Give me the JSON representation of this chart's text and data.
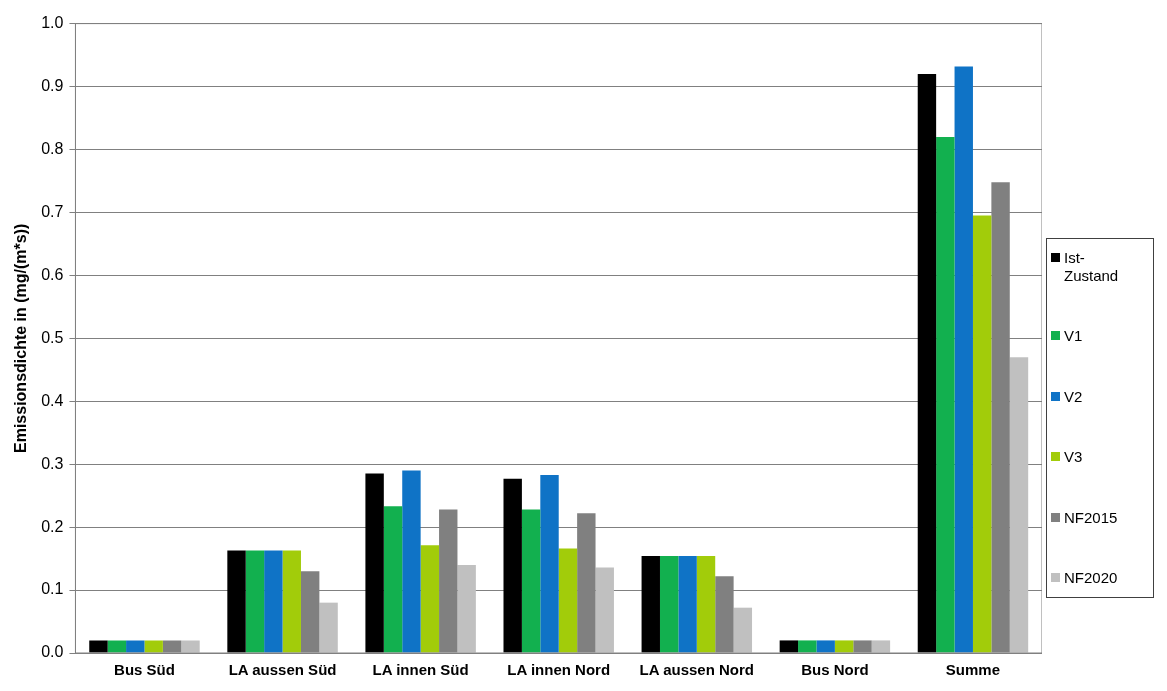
{
  "chart_data": {
    "type": "bar",
    "ylabel": "Emissionsdichte in (mg/(m*s))",
    "categories": [
      "Bus Süd",
      "LA aussen Süd",
      "LA innen Süd",
      "LA innen Nord",
      "LA aussen Nord",
      "Bus Nord",
      "Summe"
    ],
    "series": [
      {
        "name": "Ist-Zustand",
        "color": "#000000",
        "values": [
          0.02,
          0.163,
          0.285,
          0.277,
          0.154,
          0.02,
          0.92
        ]
      },
      {
        "name": "V1",
        "color": "#12b04f",
        "values": [
          0.02,
          0.163,
          0.233,
          0.228,
          0.154,
          0.02,
          0.82
        ]
      },
      {
        "name": "V2",
        "color": "#0f73c6",
        "values": [
          0.02,
          0.163,
          0.29,
          0.283,
          0.154,
          0.02,
          0.932
        ]
      },
      {
        "name": "V3",
        "color": "#a2cc0a",
        "values": [
          0.02,
          0.163,
          0.171,
          0.166,
          0.154,
          0.02,
          0.695
        ]
      },
      {
        "name": "NF2015",
        "color": "#808080",
        "values": [
          0.02,
          0.13,
          0.228,
          0.222,
          0.122,
          0.02,
          0.748
        ]
      },
      {
        "name": "NF2020",
        "color": "#c0c0c0",
        "values": [
          0.02,
          0.08,
          0.14,
          0.136,
          0.072,
          0.02,
          0.47
        ]
      }
    ],
    "ylim": [
      0,
      1
    ],
    "yticks": [
      {
        "value": 0,
        "label": "0.0"
      },
      {
        "value": 0.1,
        "label": "0.1"
      },
      {
        "value": 0.2,
        "label": "0.2"
      },
      {
        "value": 0.3,
        "label": "0.3"
      },
      {
        "value": 0.4,
        "label": "0.4"
      },
      {
        "value": 0.5,
        "label": "0.5"
      },
      {
        "value": 0.6,
        "label": "0.6"
      },
      {
        "value": 0.7,
        "label": "0.7"
      },
      {
        "value": 0.8,
        "label": "0.8"
      },
      {
        "value": 0.9,
        "label": "0.9"
      },
      {
        "value": 1,
        "label": "1.0"
      }
    ],
    "grid": "y",
    "legend": "right"
  }
}
